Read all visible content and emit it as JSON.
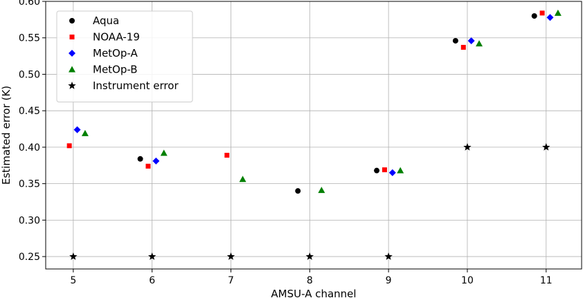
{
  "chart_data": {
    "type": "scatter",
    "xlabel": "AMSU-A channel",
    "ylabel": "Estimated error (K)",
    "xlim": [
      4.65,
      11.45
    ],
    "ylim": [
      0.233,
      0.6
    ],
    "xticks": [
      5,
      6,
      7,
      8,
      9,
      10,
      11
    ],
    "yticks": [
      0.25,
      0.3,
      0.35,
      0.4,
      0.45,
      0.5,
      0.55,
      0.6
    ],
    "ytick_labels": [
      "0.25",
      "0.30",
      "0.35",
      "0.40",
      "0.45",
      "0.50",
      "0.55",
      "0.60"
    ],
    "grid": true,
    "legend_position": "top-left",
    "series": [
      {
        "name": "Aqua",
        "marker": "circle",
        "color": "#000000",
        "points": [
          {
            "x": 5.85,
            "y": 0.384
          },
          {
            "x": 7.85,
            "y": 0.34
          },
          {
            "x": 8.85,
            "y": 0.368
          },
          {
            "x": 9.85,
            "y": 0.546
          },
          {
            "x": 10.85,
            "y": 0.58
          }
        ]
      },
      {
        "name": "NOAA-19",
        "marker": "square",
        "color": "#ff0000",
        "points": [
          {
            "x": 4.95,
            "y": 0.402
          },
          {
            "x": 5.95,
            "y": 0.374
          },
          {
            "x": 6.95,
            "y": 0.389
          },
          {
            "x": 8.95,
            "y": 0.369
          },
          {
            "x": 9.95,
            "y": 0.537
          },
          {
            "x": 10.95,
            "y": 0.584
          }
        ]
      },
      {
        "name": "MetOp-A",
        "marker": "diamond",
        "color": "#0000ff",
        "points": [
          {
            "x": 5.05,
            "y": 0.424
          },
          {
            "x": 6.05,
            "y": 0.381
          },
          {
            "x": 9.05,
            "y": 0.365
          },
          {
            "x": 10.05,
            "y": 0.546
          },
          {
            "x": 11.05,
            "y": 0.578
          }
        ]
      },
      {
        "name": "MetOp-B",
        "marker": "triangle",
        "color": "#008000",
        "points": [
          {
            "x": 5.15,
            "y": 0.419
          },
          {
            "x": 6.15,
            "y": 0.392
          },
          {
            "x": 7.15,
            "y": 0.356
          },
          {
            "x": 8.15,
            "y": 0.341
          },
          {
            "x": 9.15,
            "y": 0.368
          },
          {
            "x": 10.15,
            "y": 0.542
          },
          {
            "x": 11.15,
            "y": 0.584
          }
        ]
      },
      {
        "name": "Instrument error",
        "marker": "star",
        "color": "#000000",
        "points": [
          {
            "x": 5,
            "y": 0.25
          },
          {
            "x": 6,
            "y": 0.25
          },
          {
            "x": 7,
            "y": 0.25
          },
          {
            "x": 8,
            "y": 0.25
          },
          {
            "x": 9,
            "y": 0.25
          },
          {
            "x": 10,
            "y": 0.4
          },
          {
            "x": 11,
            "y": 0.4
          }
        ]
      }
    ]
  }
}
